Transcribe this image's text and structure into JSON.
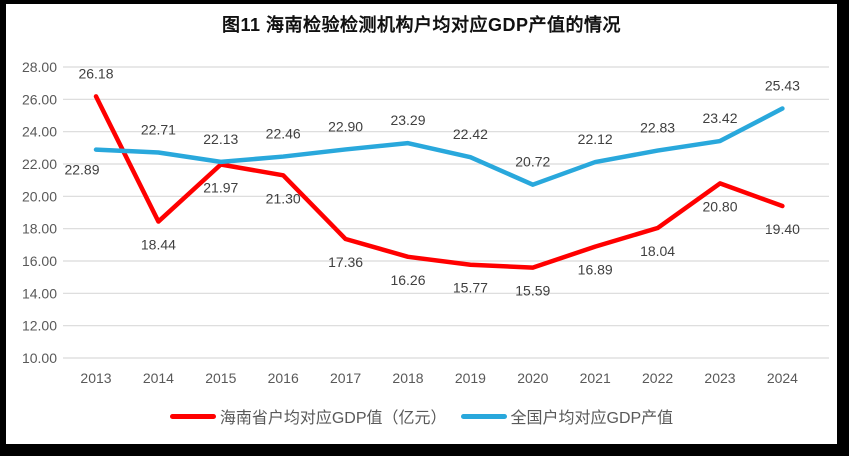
{
  "frame": {
    "border_color": "#000000",
    "paper_color": "#FFFFFF"
  },
  "chart": {
    "title": "图11 海南检验检测机构户均对应GDP产值的情况"
  },
  "chart_data": {
    "type": "line",
    "title": "图11 海南检验检测机构户均对应GDP产值的情况",
    "categories": [
      "2013",
      "2014",
      "2015",
      "2016",
      "2017",
      "2018",
      "2019",
      "2020",
      "2021",
      "2022",
      "2023",
      "2024"
    ],
    "series": [
      {
        "name": "海南省户均对应GDP值（亿元）",
        "color": "#FF0000",
        "values": [
          26.18,
          18.44,
          21.97,
          21.3,
          17.36,
          16.26,
          15.77,
          15.59,
          16.89,
          18.04,
          20.8,
          19.4
        ],
        "labels": [
          "26.18",
          "18.44",
          "21.97",
          "21.30",
          "17.36",
          "16.26",
          "15.77",
          "15.59",
          "16.89",
          "18.04",
          "20.80",
          "19.40"
        ],
        "label_placements": [
          "above",
          "below",
          "below",
          "below",
          "below",
          "below",
          "below",
          "below",
          "below",
          "below",
          "below",
          "below"
        ]
      },
      {
        "name": "全国户均对应GDP产值",
        "color": "#29A8DC",
        "values": [
          22.89,
          22.71,
          22.13,
          22.46,
          22.9,
          23.29,
          22.42,
          20.72,
          22.12,
          22.83,
          23.42,
          25.43
        ],
        "labels": [
          "22.89",
          "22.71",
          "22.13",
          "22.46",
          "22.90",
          "23.29",
          "22.42",
          "20.72",
          "22.12",
          "22.83",
          "23.42",
          "25.43"
        ],
        "label_placements": [
          "below-left",
          "above",
          "above",
          "above",
          "above",
          "above",
          "above",
          "above",
          "above",
          "above",
          "above",
          "above"
        ]
      }
    ],
    "xlabel": "",
    "ylabel": "",
    "ylim": [
      10,
      28
    ],
    "ytick_step": 2,
    "ytick_labels": [
      "10.00",
      "12.00",
      "14.00",
      "16.00",
      "18.00",
      "20.00",
      "22.00",
      "24.00",
      "26.00",
      "28.00"
    ],
    "grid": true,
    "gridline_color": "#D9D9D9",
    "axis_label_color": "#595959",
    "data_label_color": "#404040",
    "legend_position": "bottom"
  }
}
